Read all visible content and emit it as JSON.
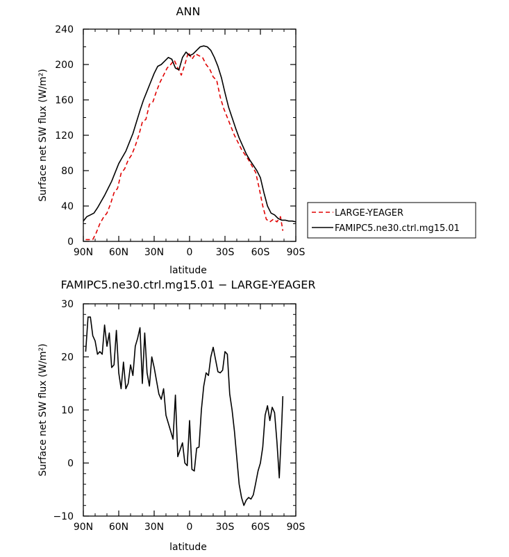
{
  "chart_data": [
    {
      "type": "line",
      "title": "ANN",
      "xlabel": "latitude",
      "ylabel": "Surface net SW flux (W/m²)",
      "xlim": [
        90,
        -90
      ],
      "ylim": [
        0,
        240
      ],
      "x_ticks": [
        90,
        60,
        30,
        0,
        -30,
        -60,
        -90
      ],
      "x_tick_labels": [
        "90N",
        "60N",
        "30N",
        "0",
        "30S",
        "60S",
        "90S"
      ],
      "y_ticks": [
        0,
        40,
        80,
        120,
        160,
        200,
        240
      ],
      "y_tick_labels": [
        "0",
        "40",
        "80",
        "120",
        "160",
        "200",
        "240"
      ],
      "legend_position": "right",
      "series": [
        {
          "name": "LARGE-YEAGER",
          "color": "#e00000",
          "dash": "dashed",
          "x": [
            88,
            85,
            82,
            79,
            76,
            73,
            70,
            67,
            64,
            61,
            58,
            55,
            52,
            49,
            46,
            43,
            40,
            37,
            34,
            31,
            28,
            25,
            22,
            19,
            16,
            13,
            10,
            7,
            4,
            1,
            -2,
            -5,
            -8,
            -11,
            -14,
            -17,
            -20,
            -23,
            -26,
            -29,
            -32,
            -35,
            -38,
            -41,
            -44,
            -47,
            -50,
            -53,
            -56,
            -59,
            -62,
            -65,
            -68,
            -71,
            -74,
            -77,
            -79
          ],
          "y": [
            2,
            2,
            2,
            10,
            20,
            27,
            32,
            42,
            55,
            60,
            77,
            82,
            92,
            98,
            108,
            120,
            135,
            138,
            155,
            158,
            170,
            180,
            188,
            196,
            200,
            205,
            196,
            188,
            200,
            214,
            206,
            212,
            210,
            208,
            200,
            195,
            186,
            182,
            163,
            150,
            140,
            130,
            120,
            112,
            104,
            98,
            92,
            85,
            78,
            60,
            40,
            25,
            22,
            25,
            22,
            28,
            12
          ]
        },
        {
          "name": "FAMIPC5.ne30.ctrl.mg15.01",
          "color": "#000000",
          "dash": "solid",
          "x": [
            90,
            87,
            84,
            81,
            78,
            75,
            72,
            69,
            66,
            63,
            60,
            57,
            54,
            51,
            48,
            45,
            42,
            39,
            36,
            33,
            30,
            27,
            24,
            21,
            18,
            15,
            12,
            9,
            6,
            3,
            0,
            -3,
            -6,
            -9,
            -12,
            -15,
            -18,
            -21,
            -24,
            -27,
            -30,
            -33,
            -36,
            -39,
            -42,
            -45,
            -48,
            -51,
            -54,
            -57,
            -60,
            -63,
            -66,
            -69,
            -72,
            -75,
            -78,
            -81,
            -84,
            -87,
            -90
          ],
          "y": [
            23,
            28,
            30,
            32,
            38,
            45,
            52,
            60,
            68,
            78,
            88,
            95,
            102,
            112,
            122,
            135,
            148,
            160,
            170,
            180,
            190,
            198,
            200,
            204,
            208,
            206,
            196,
            194,
            208,
            214,
            210,
            212,
            216,
            220,
            221,
            220,
            216,
            208,
            198,
            185,
            168,
            152,
            140,
            128,
            117,
            108,
            99,
            92,
            86,
            80,
            72,
            55,
            40,
            32,
            30,
            26,
            24,
            24,
            23,
            23,
            22
          ]
        }
      ]
    },
    {
      "type": "line",
      "title": "FAMIPC5.ne30.ctrl.mg15.01 − LARGE-YEAGER",
      "xlabel": "latitude",
      "ylabel": "Surface net SW flux (W/m²)",
      "xlim": [
        90,
        -90
      ],
      "ylim": [
        -10,
        30
      ],
      "x_ticks": [
        90,
        60,
        30,
        0,
        -30,
        -60,
        -90
      ],
      "x_tick_labels": [
        "90N",
        "60N",
        "30N",
        "0",
        "30S",
        "60S",
        "90S"
      ],
      "y_ticks": [
        -10,
        0,
        10,
        20,
        30
      ],
      "y_tick_labels": [
        "−10",
        "0",
        "10",
        "20",
        "30"
      ],
      "series": [
        {
          "color": "#000000",
          "dash": "solid",
          "x": [
            88,
            86,
            84,
            82,
            80,
            78,
            76,
            74,
            72,
            70,
            68,
            66,
            64,
            62,
            60,
            58,
            56,
            54,
            52,
            50,
            48,
            46,
            44,
            42,
            40,
            38,
            36,
            34,
            32,
            30,
            28,
            26,
            24,
            22,
            20,
            18,
            16,
            14,
            12,
            10,
            8,
            6,
            4,
            2,
            0,
            -2,
            -4,
            -6,
            -8,
            -10,
            -12,
            -14,
            -16,
            -18,
            -20,
            -22,
            -24,
            -26,
            -28,
            -30,
            -32,
            -34,
            -36,
            -38,
            -40,
            -42,
            -44,
            -46,
            -48,
            -50,
            -52,
            -54,
            -56,
            -58,
            -60,
            -62,
            -64,
            -66,
            -68,
            -70,
            -72,
            -74,
            -76,
            -78,
            -79
          ],
          "y": [
            21,
            27.5,
            27.5,
            24,
            23,
            20.5,
            21,
            20.5,
            26,
            22,
            24.5,
            18,
            18.5,
            25,
            17,
            14,
            19,
            14,
            15,
            18.5,
            16.5,
            22,
            23.5,
            25.5,
            15,
            24.5,
            17,
            14.5,
            20,
            18,
            15.5,
            13,
            12,
            14,
            9,
            7.5,
            6,
            4.5,
            12.8,
            1.2,
            2.5,
            3.8,
            0,
            -0.5,
            8,
            -1.2,
            -1.5,
            2.8,
            3,
            10,
            14.5,
            17,
            16.5,
            20,
            21.8,
            19.5,
            17.2,
            17,
            17.5,
            21,
            20.5,
            13,
            10,
            6,
            1,
            -4,
            -6.5,
            -8,
            -7,
            -6.5,
            -6.8,
            -6,
            -3.8,
            -1.5,
            0,
            3,
            9,
            10.8,
            8,
            10.5,
            9.5,
            4,
            -2.8,
            7,
            12.6
          ]
        }
      ]
    }
  ]
}
